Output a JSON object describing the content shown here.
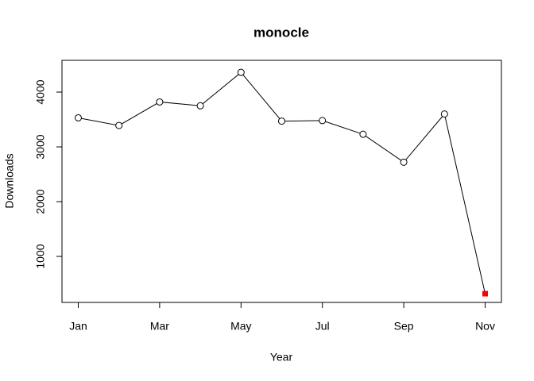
{
  "chart_data": {
    "type": "line",
    "title": "monocle",
    "x_label": "Year",
    "y_label": "Downloads",
    "categories": [
      "Jan",
      null,
      "Mar",
      null,
      "May",
      null,
      "Jul",
      null,
      "Sep",
      null,
      "Nov"
    ],
    "values": [
      3530,
      3390,
      3820,
      3750,
      4360,
      3470,
      3480,
      3230,
      2720,
      3600,
      320
    ],
    "color": "#000000",
    "last_point_color": "#ff0000",
    "ylim": [
      160,
      4580
    ],
    "yticks": [
      1000,
      2000,
      3000,
      4000
    ],
    "grid": false
  }
}
